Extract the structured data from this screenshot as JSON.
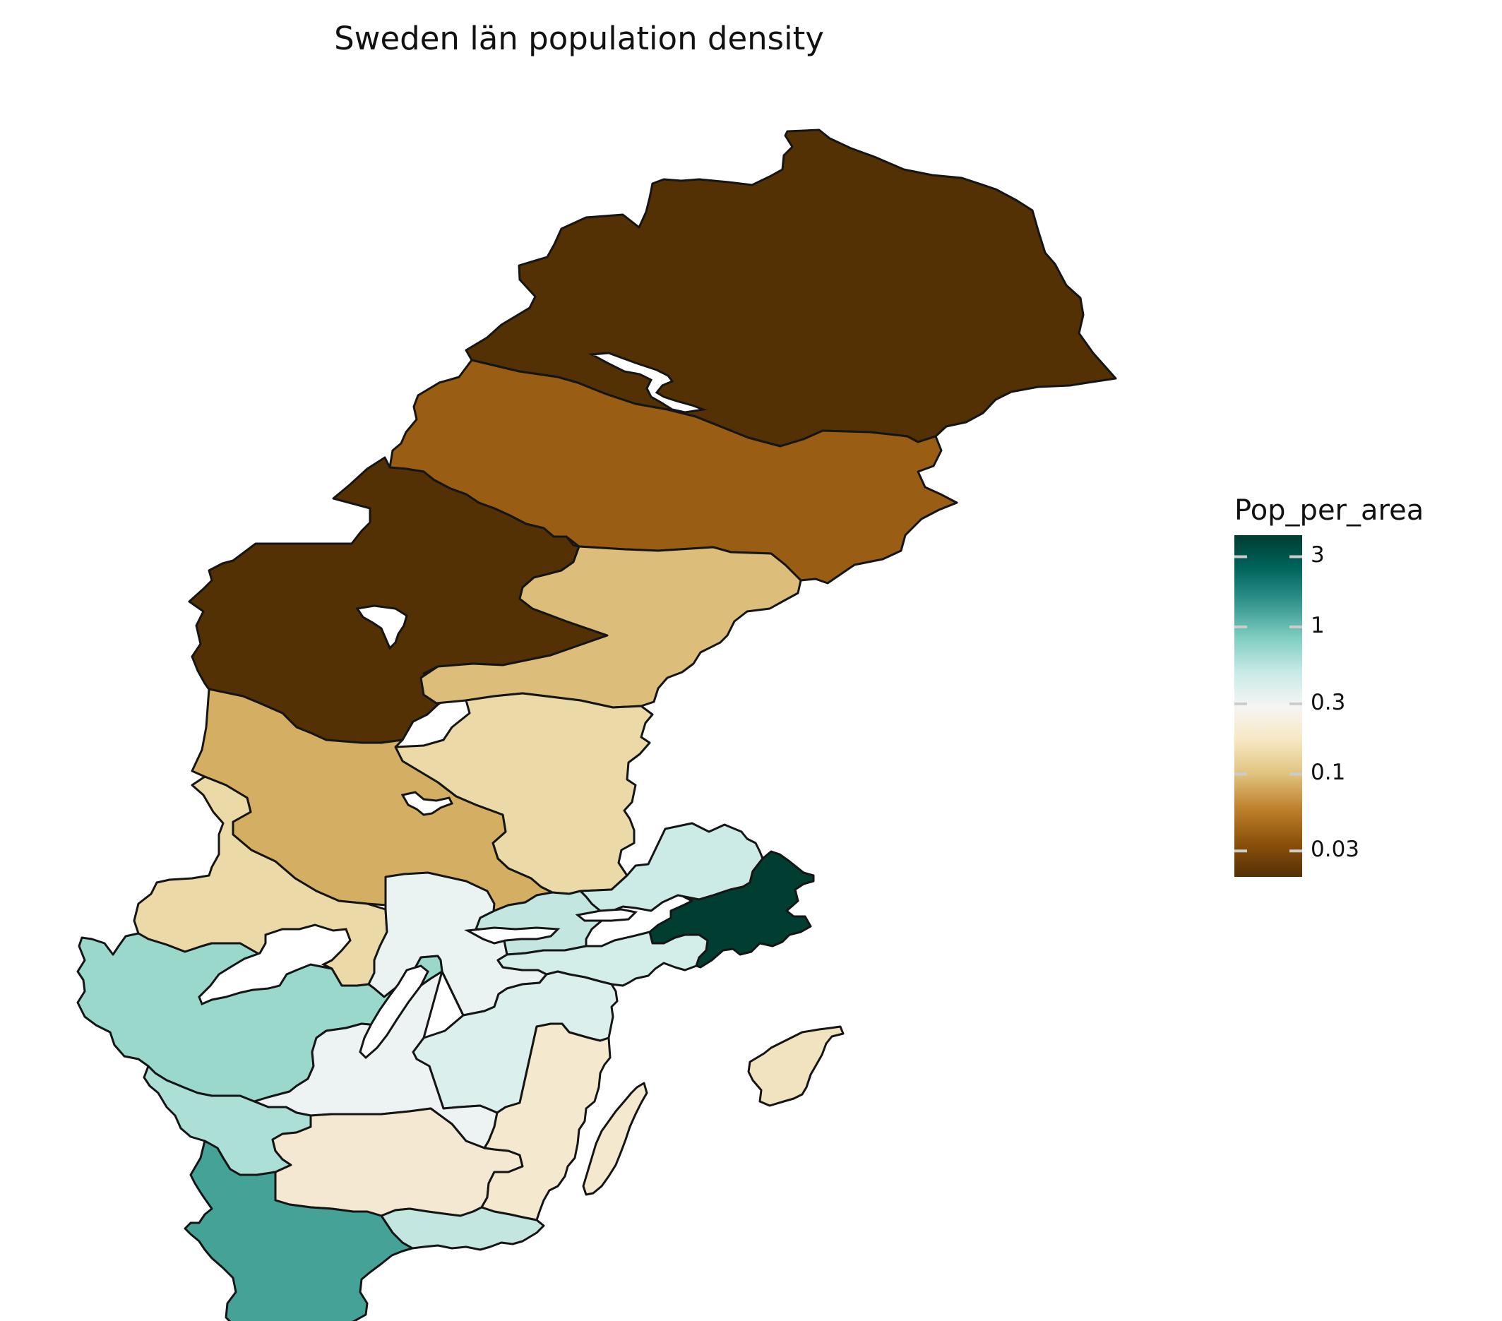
{
  "title": "Sweden län population density",
  "legend": {
    "title": "Pop_per_area",
    "scale": "log",
    "ticks": [
      {
        "value": 3,
        "label": "3"
      },
      {
        "value": 1,
        "label": "1"
      },
      {
        "value": 0.3,
        "label": "0.3"
      },
      {
        "value": 0.1,
        "label": "0.1"
      },
      {
        "value": 0.03,
        "label": "0.03"
      }
    ],
    "colors": [
      "#543005",
      "#8c510a",
      "#bf812d",
      "#dfc27d",
      "#f6e8c3",
      "#f5f5f5",
      "#c7eae5",
      "#80cdc1",
      "#35978f",
      "#01665e",
      "#003c30"
    ]
  },
  "chart_data": {
    "type": "choropleth",
    "title": "Sweden län population density",
    "legend_title": "Pop_per_area",
    "regions": [
      {
        "id": "norrbotten",
        "value": 0.025,
        "color": "#543005"
      },
      {
        "id": "vasterbotten",
        "value": 0.048,
        "color": "#995d13"
      },
      {
        "id": "jamtland",
        "value": 0.025,
        "color": "#543005"
      },
      {
        "id": "vasternorrland",
        "value": 0.11,
        "color": "#dcbd7a"
      },
      {
        "id": "dalarna",
        "value": 0.1,
        "color": "#d4ae63"
      },
      {
        "id": "gavleborg",
        "value": 0.14,
        "color": "#ecd9a8"
      },
      {
        "id": "varmland",
        "value": 0.15,
        "color": "#ecd9a8"
      },
      {
        "id": "orebro",
        "value": 0.35,
        "color": "#eaf3f2"
      },
      {
        "id": "vastmanland",
        "value": 0.55,
        "color": "#c4e6e1"
      },
      {
        "id": "uppsala",
        "value": 0.5,
        "color": "#cdebe6"
      },
      {
        "id": "stockholm",
        "value": 3.6,
        "color": "#013d30"
      },
      {
        "id": "sodermanland",
        "value": 0.45,
        "color": "#d3eee9"
      },
      {
        "id": "ostergotland",
        "value": 0.42,
        "color": "#dbefec"
      },
      {
        "id": "vastra-gotaland",
        "value": 0.7,
        "color": "#9bd8cc"
      },
      {
        "id": "jonkoping",
        "value": 0.33,
        "color": "#ecf3f2"
      },
      {
        "id": "kalmar",
        "value": 0.21,
        "color": "#f4e8cf"
      },
      {
        "id": "kronoberg",
        "value": 0.22,
        "color": "#f4e8d2"
      },
      {
        "id": "halland",
        "value": 0.65,
        "color": "#acdfd5"
      },
      {
        "id": "blekinge",
        "value": 0.55,
        "color": "#c4e6e1"
      },
      {
        "id": "skane",
        "value": 1.4,
        "color": "#45a296"
      },
      {
        "id": "gotland",
        "value": 0.18,
        "color": "#f2e3c0"
      }
    ]
  }
}
